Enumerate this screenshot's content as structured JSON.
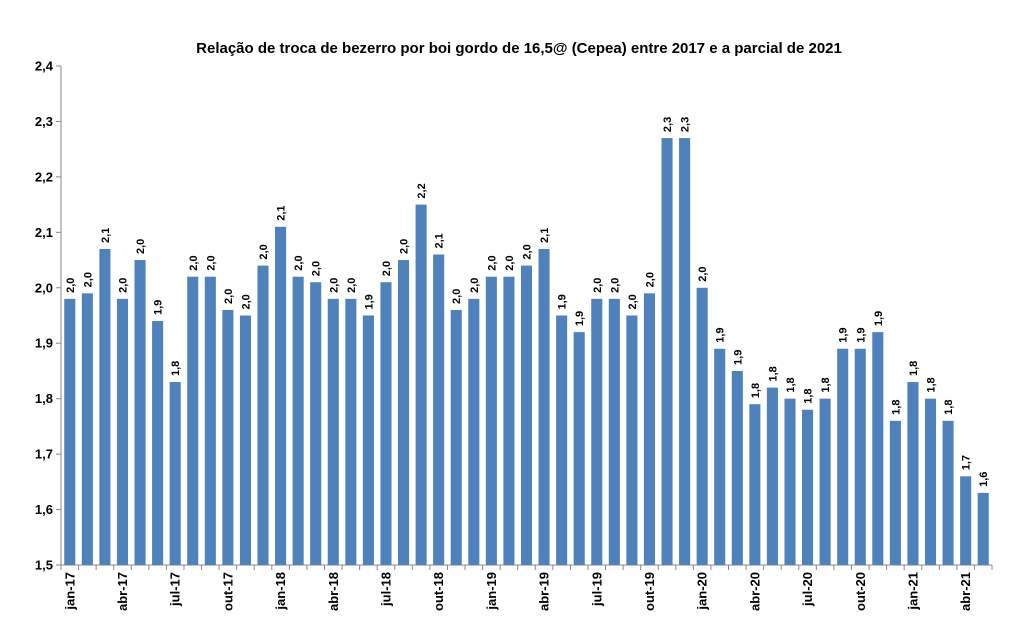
{
  "chart_data": {
    "type": "bar",
    "title": "Relação de troca de bezerro por boi gordo de 16,5@ (Cepea) entre 2017 e a parcial de 2021",
    "xlabel": "",
    "ylabel": "",
    "ylim": [
      1.5,
      2.4
    ],
    "yticks": [
      "1,5",
      "1,6",
      "1,7",
      "1,8",
      "1,9",
      "2,0",
      "2,1",
      "2,2",
      "2,3",
      "2,4"
    ],
    "grid": false,
    "legend": "none",
    "bar_color": "#4F81BD",
    "categories": [
      "jan-17",
      "fev-17",
      "mar-17",
      "abr-17",
      "mai-17",
      "jun-17",
      "jul-17",
      "ago-17",
      "set-17",
      "out-17",
      "nov-17",
      "dez-17",
      "jan-18",
      "fev-18",
      "mar-18",
      "abr-18",
      "mai-18",
      "jun-18",
      "jul-18",
      "ago-18",
      "set-18",
      "out-18",
      "nov-18",
      "dez-18",
      "jan-19",
      "fev-19",
      "mar-19",
      "abr-19",
      "mai-19",
      "jun-19",
      "jul-19",
      "ago-19",
      "set-19",
      "out-19",
      "nov-19",
      "dez-19",
      "jan-20",
      "fev-20",
      "mar-20",
      "abr-20",
      "mai-20",
      "jun-20",
      "jul-20",
      "ago-20",
      "set-20",
      "out-20",
      "nov-20",
      "dez-20",
      "jan-21",
      "fev-21",
      "mar-21",
      "abr-21",
      "mai-21"
    ],
    "tick_labels": [
      "jan-17",
      "abr-17",
      "jul-17",
      "out-17",
      "jan-18",
      "abr-18",
      "jul-18",
      "out-18",
      "jan-19",
      "abr-19",
      "jul-19",
      "out-19",
      "jan-20",
      "abr-20",
      "jul-20",
      "out-20",
      "jan-21",
      "abr-21"
    ],
    "values": [
      1.98,
      1.99,
      2.07,
      1.98,
      2.05,
      1.94,
      1.83,
      2.02,
      2.02,
      1.96,
      1.95,
      2.04,
      2.11,
      2.02,
      2.01,
      1.98,
      1.98,
      1.95,
      2.01,
      2.05,
      2.15,
      2.06,
      1.96,
      1.98,
      2.02,
      2.02,
      2.04,
      2.07,
      1.95,
      1.92,
      1.98,
      1.98,
      1.95,
      1.99,
      2.27,
      2.27,
      2.0,
      1.89,
      1.85,
      1.79,
      1.82,
      1.8,
      1.78,
      1.8,
      1.89,
      1.89,
      1.92,
      1.76,
      1.83,
      1.8,
      1.76,
      1.66,
      1.63
    ],
    "data_labels": [
      "2,0",
      "2,0",
      "2,1",
      "2,0",
      "2,0",
      "1,9",
      "1,8",
      "2,0",
      "2,0",
      "2,0",
      "2,0",
      "2,0",
      "2,1",
      "2,0",
      "2,0",
      "2,0",
      "2,0",
      "1,9",
      "2,0",
      "2,0",
      "2,2",
      "2,1",
      "2,0",
      "2,0",
      "2,0",
      "2,0",
      "2,0",
      "2,1",
      "1,9",
      "1,9",
      "2,0",
      "2,0",
      "2,0",
      "2,0",
      "2,3",
      "2,3",
      "2,0",
      "1,9",
      "1,9",
      "1,8",
      "1,8",
      "1,8",
      "1,8",
      "1,8",
      "1,9",
      "1,9",
      "1,9",
      "1,8",
      "1,8",
      "1,8",
      "1,8",
      "1,7",
      "1,6"
    ]
  }
}
